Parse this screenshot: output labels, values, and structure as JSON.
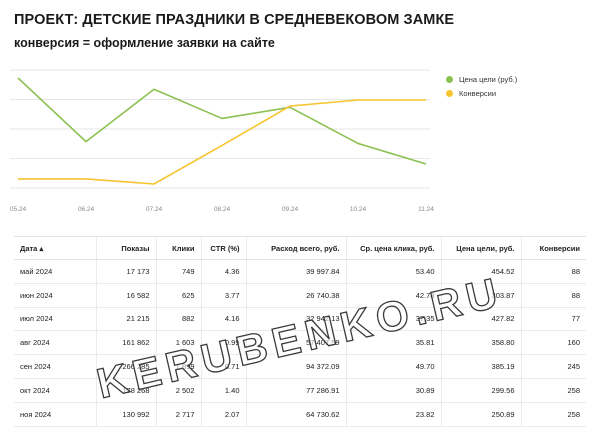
{
  "page": {
    "title": "ПРОЕКТ: ДЕТСКИЕ ПРАЗДНИКИ В СРЕДНЕВЕКОВОМ ЗАМКЕ",
    "subtitle": "конверсия = оформление заявки на сайте"
  },
  "colors": {
    "green": "#8cc152",
    "yellow": "#f7c531",
    "grid": "#e6e6e6"
  },
  "chart_data": {
    "type": "line",
    "categories": [
      "05.24",
      "06.24",
      "07.24",
      "08.24",
      "09.24",
      "10.24",
      "11.24"
    ],
    "grid": true,
    "legend_position": "right",
    "series": [
      {
        "name": "Цена цели (руб.)",
        "color": "#8cc152",
        "values": [
          454.52,
          303.87,
          427.82,
          358.8,
          385.19,
          299.56,
          250.89
        ]
      },
      {
        "name": "Конверсии",
        "color": "#f7c531",
        "values": [
          88,
          88,
          77,
          160,
          245,
          258,
          258
        ]
      }
    ]
  },
  "table": {
    "columns": [
      "Дата ▴",
      "Показы",
      "Клики",
      "CTR (%)",
      "Расход всего, руб.",
      "Ср. цена клика, руб.",
      "Цена цели, руб.",
      "Конверсии"
    ],
    "rows": [
      [
        "май 2024",
        "17 173",
        "749",
        "4.36",
        "39 997.84",
        "53.40",
        "454.52",
        "88"
      ],
      [
        "июн 2024",
        "16 582",
        "625",
        "3.77",
        "26 740.38",
        "42.78",
        "303.87",
        "88"
      ],
      [
        "июл 2024",
        "21 215",
        "882",
        "4.16",
        "32 942.13",
        "37.35",
        "427.82",
        "77"
      ],
      [
        "авг 2024",
        "161 862",
        "1 603",
        "0.99",
        "57 407.59",
        "35.81",
        "358.80",
        "160"
      ],
      [
        "сен 2024",
        "266 285",
        "1 899",
        "0.71",
        "94 372.09",
        "49.70",
        "385.19",
        "245"
      ],
      [
        "окт 2024",
        "178 268",
        "2 502",
        "1.40",
        "77 286.91",
        "30.89",
        "299.56",
        "258"
      ],
      [
        "ноя 2024",
        "130 992",
        "2 717",
        "2.07",
        "64 730.62",
        "23.82",
        "250.89",
        "258"
      ]
    ]
  },
  "watermark": "KERUBENKO.RU"
}
